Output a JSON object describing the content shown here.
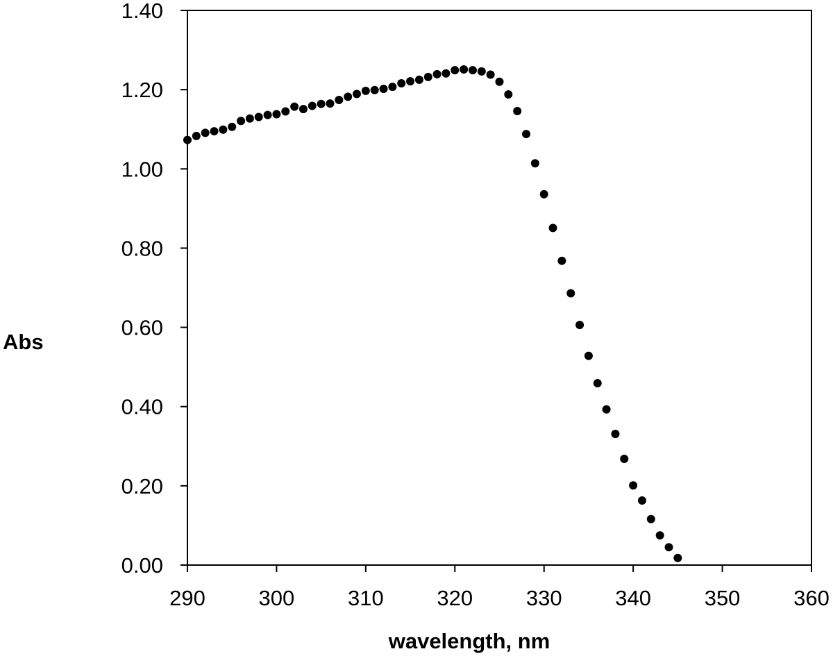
{
  "chart_data": {
    "type": "scatter",
    "title": "",
    "xlabel": "wavelength, nm",
    "ylabel": "Abs",
    "xlim": [
      290,
      360
    ],
    "ylim": [
      0,
      1.4
    ],
    "x_ticks": [
      "290",
      "300",
      "310",
      "320",
      "330",
      "340",
      "350",
      "360"
    ],
    "y_ticks": [
      "0.00",
      "0.20",
      "0.40",
      "0.60",
      "0.80",
      "1.00",
      "1.20",
      "1.40"
    ],
    "grid": false,
    "legend": "none",
    "marker_color": "#000000",
    "series": [
      {
        "x": [
          290,
          291,
          292,
          293,
          294,
          295,
          296,
          297,
          298,
          299,
          300,
          301,
          302,
          303,
          304,
          305,
          306,
          307,
          308,
          309,
          310,
          311,
          312,
          313,
          314,
          315,
          316,
          317,
          318,
          319,
          320,
          321,
          322,
          323,
          324,
          325,
          326,
          327,
          328,
          329,
          330,
          331,
          332,
          333,
          334,
          335,
          336,
          337,
          338,
          339,
          340,
          341,
          342,
          343,
          344,
          345
        ],
        "y": [
          1.073,
          1.083,
          1.091,
          1.095,
          1.099,
          1.106,
          1.121,
          1.127,
          1.131,
          1.136,
          1.138,
          1.145,
          1.157,
          1.151,
          1.159,
          1.164,
          1.165,
          1.174,
          1.182,
          1.189,
          1.197,
          1.199,
          1.202,
          1.207,
          1.216,
          1.221,
          1.225,
          1.232,
          1.239,
          1.241,
          1.249,
          1.251,
          1.249,
          1.246,
          1.238,
          1.22,
          1.188,
          1.146,
          1.088,
          1.014,
          0.936,
          0.851,
          0.768,
          0.686,
          0.606,
          0.528,
          0.459,
          0.393,
          0.331,
          0.268,
          0.201,
          0.163,
          0.116,
          0.075,
          0.045,
          0.018
        ]
      }
    ]
  }
}
